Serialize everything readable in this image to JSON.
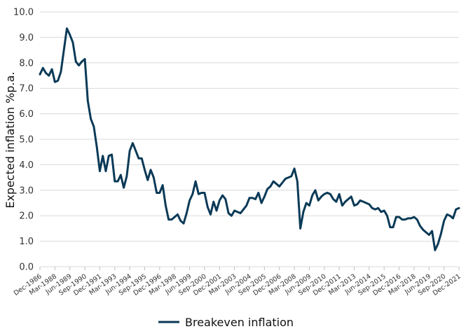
{
  "chart_data": {
    "type": "line",
    "title": "",
    "xlabel": "",
    "ylabel": "Expected inflation %p.a.",
    "ylim": [
      0,
      10
    ],
    "yticks": [
      "0.0",
      "1.0",
      "2.0",
      "3.0",
      "4.0",
      "5.0",
      "6.0",
      "7.0",
      "8.0",
      "9.0",
      "10.0"
    ],
    "grid": "horizontal",
    "legend_position": "bottom-center",
    "line_color": "#0b3a57",
    "x_tick_labels": [
      "Dec-1986",
      "Mar-1988",
      "Jun-1989",
      "Sep-1990",
      "Dec-1991",
      "Mar-1993",
      "Jun-1994",
      "Sep-1995",
      "Dec-1996",
      "Mar-1998",
      "Jun-1999",
      "Sep-2000",
      "Dec-2001",
      "Mar-2003",
      "Jun-2004",
      "Sep-2005",
      "Dec-2006",
      "Mar-2008",
      "Jun-2009",
      "Sep-2010",
      "Dec-2011",
      "Mar-2013",
      "Jun-2014",
      "Sep-2015",
      "Dec-2016",
      "Mar-2018",
      "Jun-2019",
      "Sep-2020",
      "Dec-2021"
    ],
    "x_range": [
      "Dec-1986",
      "Dec-2021"
    ],
    "series": [
      {
        "name": "Breakeven inflation",
        "points": [
          [
            "Dec-1986",
            7.55
          ],
          [
            "Mar-1987",
            7.8
          ],
          [
            "Jun-1987",
            7.6
          ],
          [
            "Sep-1987",
            7.5
          ],
          [
            "Dec-1987",
            7.75
          ],
          [
            "Mar-1988",
            7.25
          ],
          [
            "Jun-1988",
            7.3
          ],
          [
            "Sep-1988",
            7.65
          ],
          [
            "Dec-1988",
            8.5
          ],
          [
            "Mar-1989",
            9.35
          ],
          [
            "Jun-1989",
            9.1
          ],
          [
            "Sep-1989",
            8.8
          ],
          [
            "Dec-1989",
            8.05
          ],
          [
            "Mar-1990",
            7.9
          ],
          [
            "Jun-1990",
            8.05
          ],
          [
            "Sep-1990",
            8.15
          ],
          [
            "Dec-1990",
            6.5
          ],
          [
            "Mar-1991",
            5.8
          ],
          [
            "Jun-1991",
            5.5
          ],
          [
            "Sep-1991",
            4.7
          ],
          [
            "Dec-1991",
            3.75
          ],
          [
            "Mar-1992",
            4.35
          ],
          [
            "Jun-1992",
            3.75
          ],
          [
            "Sep-1992",
            4.35
          ],
          [
            "Dec-1992",
            4.4
          ],
          [
            "Mar-1993",
            3.35
          ],
          [
            "Jun-1993",
            3.35
          ],
          [
            "Sep-1993",
            3.6
          ],
          [
            "Dec-1993",
            3.1
          ],
          [
            "Mar-1994",
            3.55
          ],
          [
            "Jun-1994",
            4.55
          ],
          [
            "Sep-1994",
            4.85
          ],
          [
            "Dec-1994",
            4.55
          ],
          [
            "Mar-1995",
            4.25
          ],
          [
            "Jun-1995",
            4.25
          ],
          [
            "Sep-1995",
            3.8
          ],
          [
            "Dec-1995",
            3.4
          ],
          [
            "Mar-1996",
            3.8
          ],
          [
            "Jun-1996",
            3.5
          ],
          [
            "Sep-1996",
            2.9
          ],
          [
            "Dec-1996",
            2.9
          ],
          [
            "Mar-1997",
            3.2
          ],
          [
            "Jun-1997",
            2.4
          ],
          [
            "Sep-1997",
            1.85
          ],
          [
            "Dec-1997",
            1.85
          ],
          [
            "Mar-1998",
            1.95
          ],
          [
            "Jun-1998",
            2.05
          ],
          [
            "Sep-1998",
            1.8
          ],
          [
            "Dec-1998",
            1.7
          ],
          [
            "Mar-1999",
            2.1
          ],
          [
            "Jun-1999",
            2.6
          ],
          [
            "Sep-1999",
            2.85
          ],
          [
            "Dec-1999",
            3.35
          ],
          [
            "Mar-2000",
            2.85
          ],
          [
            "Jun-2000",
            2.9
          ],
          [
            "Sep-2000",
            2.9
          ],
          [
            "Dec-2000",
            2.35
          ],
          [
            "Mar-2001",
            2.05
          ],
          [
            "Jun-2001",
            2.55
          ],
          [
            "Sep-2001",
            2.2
          ],
          [
            "Dec-2001",
            2.6
          ],
          [
            "Mar-2002",
            2.8
          ],
          [
            "Jun-2002",
            2.65
          ],
          [
            "Sep-2002",
            2.1
          ],
          [
            "Dec-2002",
            2.0
          ],
          [
            "Mar-2003",
            2.2
          ],
          [
            "Jun-2003",
            2.15
          ],
          [
            "Sep-2003",
            2.1
          ],
          [
            "Dec-2003",
            2.25
          ],
          [
            "Mar-2004",
            2.4
          ],
          [
            "Jun-2004",
            2.7
          ],
          [
            "Sep-2004",
            2.7
          ],
          [
            "Dec-2004",
            2.65
          ],
          [
            "Mar-2005",
            2.9
          ],
          [
            "Jun-2005",
            2.5
          ],
          [
            "Sep-2005",
            2.75
          ],
          [
            "Dec-2005",
            3.05
          ],
          [
            "Mar-2006",
            3.15
          ],
          [
            "Jun-2006",
            3.35
          ],
          [
            "Sep-2006",
            3.25
          ],
          [
            "Dec-2006",
            3.15
          ],
          [
            "Mar-2007",
            3.3
          ],
          [
            "Jun-2007",
            3.45
          ],
          [
            "Sep-2007",
            3.5
          ],
          [
            "Dec-2007",
            3.55
          ],
          [
            "Mar-2008",
            3.85
          ],
          [
            "Jun-2008",
            3.35
          ],
          [
            "Sep-2008",
            1.5
          ],
          [
            "Dec-2008",
            2.15
          ],
          [
            "Mar-2009",
            2.5
          ],
          [
            "Jun-2009",
            2.4
          ],
          [
            "Sep-2009",
            2.8
          ],
          [
            "Dec-2009",
            3.0
          ],
          [
            "Mar-2010",
            2.6
          ],
          [
            "Jun-2010",
            2.75
          ],
          [
            "Sep-2010",
            2.85
          ],
          [
            "Dec-2010",
            2.9
          ],
          [
            "Mar-2011",
            2.85
          ],
          [
            "Jun-2011",
            2.65
          ],
          [
            "Sep-2011",
            2.55
          ],
          [
            "Dec-2011",
            2.85
          ],
          [
            "Mar-2012",
            2.4
          ],
          [
            "Jun-2012",
            2.55
          ],
          [
            "Sep-2012",
            2.65
          ],
          [
            "Dec-2012",
            2.75
          ],
          [
            "Mar-2013",
            2.4
          ],
          [
            "Jun-2013",
            2.45
          ],
          [
            "Sep-2013",
            2.6
          ],
          [
            "Dec-2013",
            2.55
          ],
          [
            "Mar-2014",
            2.5
          ],
          [
            "Jun-2014",
            2.45
          ],
          [
            "Sep-2014",
            2.3
          ],
          [
            "Dec-2014",
            2.25
          ],
          [
            "Mar-2015",
            2.3
          ],
          [
            "Jun-2015",
            2.15
          ],
          [
            "Sep-2015",
            2.2
          ],
          [
            "Dec-2015",
            2.0
          ],
          [
            "Mar-2016",
            1.55
          ],
          [
            "Jun-2016",
            1.55
          ],
          [
            "Sep-2016",
            1.95
          ],
          [
            "Dec-2016",
            1.95
          ],
          [
            "Mar-2017",
            1.85
          ],
          [
            "Jun-2017",
            1.85
          ],
          [
            "Sep-2017",
            1.9
          ],
          [
            "Dec-2017",
            1.9
          ],
          [
            "Mar-2018",
            1.95
          ],
          [
            "Jun-2018",
            1.85
          ],
          [
            "Sep-2018",
            1.6
          ],
          [
            "Dec-2018",
            1.45
          ],
          [
            "Mar-2019",
            1.35
          ],
          [
            "Jun-2019",
            1.25
          ],
          [
            "Sep-2019",
            1.4
          ],
          [
            "Dec-2019",
            0.65
          ],
          [
            "Mar-2020",
            0.9
          ],
          [
            "Jun-2020",
            1.3
          ],
          [
            "Sep-2020",
            1.8
          ],
          [
            "Dec-2020",
            2.05
          ],
          [
            "Mar-2021",
            2.0
          ],
          [
            "Jun-2021",
            1.9
          ],
          [
            "Sep-2021",
            2.25
          ],
          [
            "Dec-2021",
            2.3
          ]
        ]
      }
    ]
  }
}
